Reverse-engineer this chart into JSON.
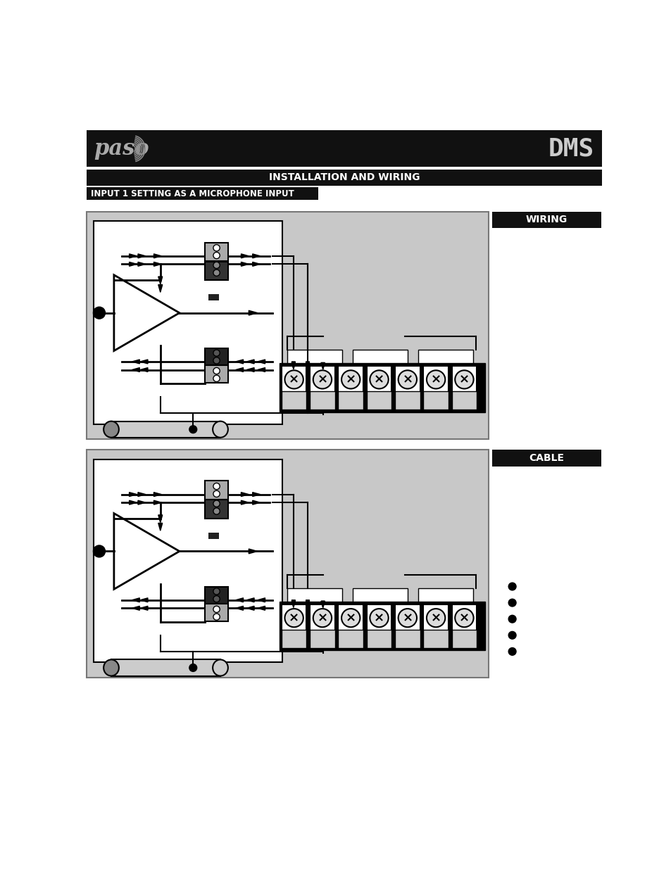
{
  "page_bg": "#ffffff",
  "header_bg": "#111111",
  "header_text": "INSTALLATION AND WIRING",
  "wiring_label": "WIRING",
  "cable_label": "CABLE",
  "diagram_outer_bg": "#c8c8c8",
  "diagram_inner_bg": "#ffffff",
  "label_bg": "#111111",
  "label_text_color": "#ffffff",
  "conn_upper_color": "#888888",
  "conn_lower_color": "#333333",
  "terminal_bg": "#000000",
  "terminal_cell_bg": "#ffffff"
}
